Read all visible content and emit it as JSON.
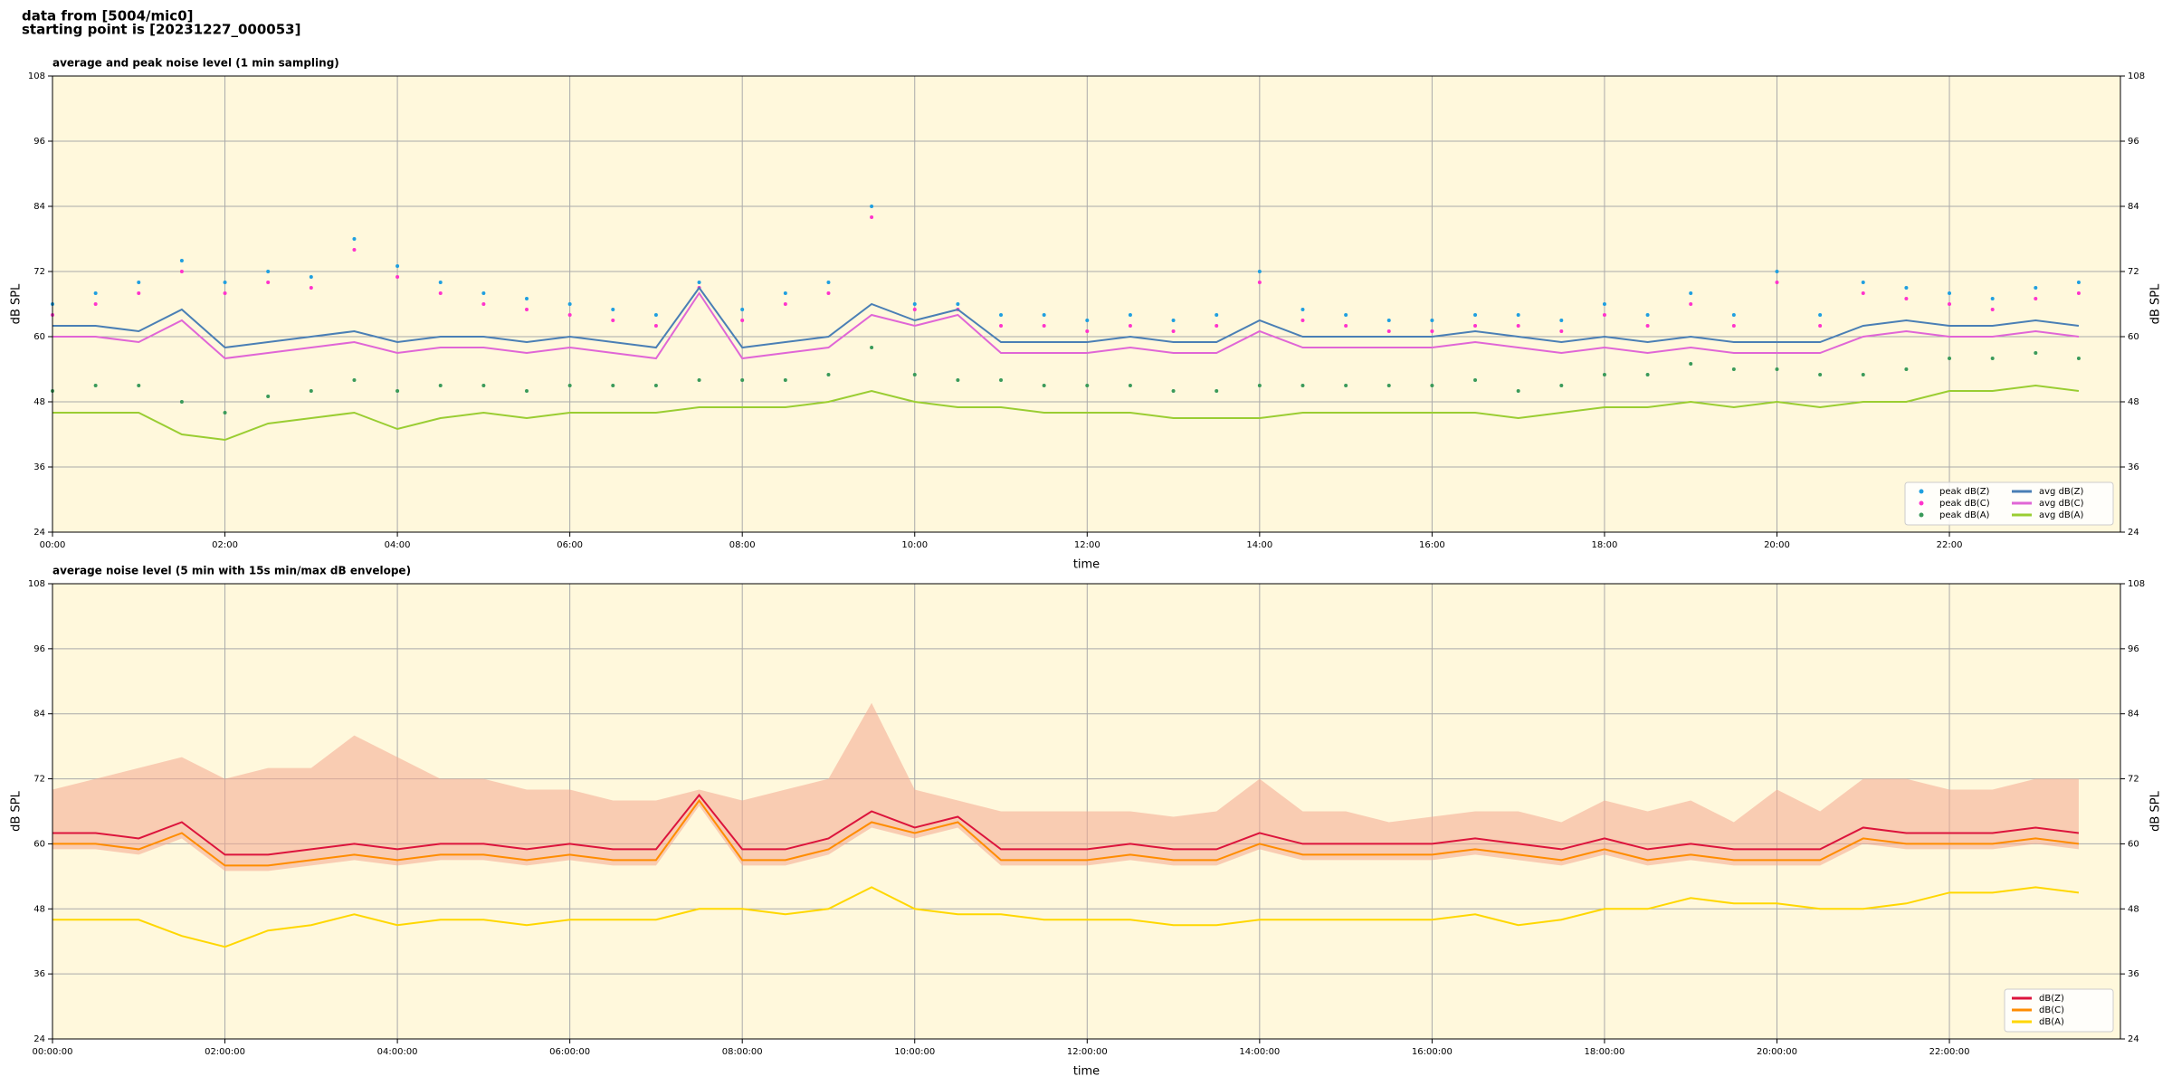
{
  "header": {
    "lines": [
      "data from [5004/mic0]",
      "starting point is [20231227_000053]"
    ]
  },
  "chart_data": [
    {
      "type": "line",
      "title": "average and peak noise level (1 min sampling)",
      "x_label": "time",
      "y_label": "dB SPL",
      "xlim": [
        "00:00",
        "23:59"
      ],
      "xticks": [
        "00:00",
        "02:00",
        "04:00",
        "06:00",
        "08:00",
        "10:00",
        "12:00",
        "14:00",
        "16:00",
        "18:00",
        "20:00",
        "22:00"
      ],
      "ylim": [
        24,
        108
      ],
      "yticks": [
        24,
        36,
        48,
        60,
        72,
        84,
        96,
        108
      ],
      "grid": true,
      "legend": "lower right",
      "legend_columns": 2,
      "background": "#fff8dc",
      "x": [
        "00:00",
        "00:30",
        "01:00",
        "01:30",
        "02:00",
        "02:30",
        "03:00",
        "03:30",
        "04:00",
        "04:30",
        "05:00",
        "05:30",
        "06:00",
        "06:30",
        "07:00",
        "07:30",
        "08:00",
        "08:30",
        "09:00",
        "09:30",
        "10:00",
        "10:30",
        "11:00",
        "11:30",
        "12:00",
        "12:30",
        "13:00",
        "13:30",
        "14:00",
        "14:30",
        "15:00",
        "15:30",
        "16:00",
        "16:30",
        "17:00",
        "17:30",
        "18:00",
        "18:30",
        "19:00",
        "19:30",
        "20:00",
        "20:30",
        "21:00",
        "21:30",
        "22:00",
        "22:30",
        "23:00",
        "23:30"
      ],
      "series": [
        {
          "name": "peak dB(Z)",
          "style": "dots",
          "color": "#1f9fe0",
          "values": [
            66,
            68,
            70,
            74,
            70,
            72,
            71,
            78,
            73,
            70,
            68,
            67,
            66,
            65,
            64,
            70,
            65,
            68,
            70,
            84,
            66,
            66,
            64,
            64,
            63,
            64,
            63,
            64,
            72,
            65,
            64,
            63,
            63,
            64,
            64,
            63,
            66,
            64,
            68,
            64,
            72,
            64,
            70,
            69,
            68,
            67,
            69,
            70
          ]
        },
        {
          "name": "peak dB(C)",
          "style": "dots",
          "color": "#ff33cc",
          "values": [
            64,
            66,
            68,
            72,
            68,
            70,
            69,
            76,
            71,
            68,
            66,
            65,
            64,
            63,
            62,
            69,
            63,
            66,
            68,
            82,
            65,
            65,
            62,
            62,
            61,
            62,
            61,
            62,
            70,
            63,
            62,
            61,
            61,
            62,
            62,
            61,
            64,
            62,
            66,
            62,
            70,
            62,
            68,
            67,
            66,
            65,
            67,
            68
          ]
        },
        {
          "name": "peak dB(A)",
          "style": "dots",
          "color": "#3a9a5a",
          "values": [
            50,
            51,
            51,
            48,
            46,
            49,
            50,
            52,
            50,
            51,
            51,
            50,
            51,
            51,
            51,
            52,
            52,
            52,
            53,
            58,
            53,
            52,
            52,
            51,
            51,
            51,
            50,
            50,
            51,
            51,
            51,
            51,
            51,
            52,
            50,
            51,
            53,
            53,
            55,
            54,
            54,
            53,
            53,
            54,
            56,
            56,
            57,
            56
          ]
        },
        {
          "name": "avg dB(Z)",
          "style": "line",
          "color": "#4a7fb5",
          "values": [
            62,
            62,
            61,
            65,
            58,
            59,
            60,
            61,
            59,
            60,
            60,
            59,
            60,
            59,
            58,
            69,
            58,
            59,
            60,
            66,
            63,
            65,
            59,
            59,
            59,
            60,
            59,
            59,
            63,
            60,
            60,
            60,
            60,
            61,
            60,
            59,
            60,
            59,
            60,
            59,
            59,
            59,
            62,
            63,
            62,
            62,
            63,
            62
          ]
        },
        {
          "name": "avg dB(C)",
          "style": "line",
          "color": "#e066d6",
          "values": [
            60,
            60,
            59,
            63,
            56,
            57,
            58,
            59,
            57,
            58,
            58,
            57,
            58,
            57,
            56,
            68,
            56,
            57,
            58,
            64,
            62,
            64,
            57,
            57,
            57,
            58,
            57,
            57,
            61,
            58,
            58,
            58,
            58,
            59,
            58,
            57,
            58,
            57,
            58,
            57,
            57,
            57,
            60,
            61,
            60,
            60,
            61,
            60
          ]
        },
        {
          "name": "avg dB(A)",
          "style": "line",
          "color": "#9acd32",
          "values": [
            46,
            46,
            46,
            42,
            41,
            44,
            45,
            46,
            43,
            45,
            46,
            45,
            46,
            46,
            46,
            47,
            47,
            47,
            48,
            50,
            48,
            47,
            47,
            46,
            46,
            46,
            45,
            45,
            45,
            46,
            46,
            46,
            46,
            46,
            45,
            46,
            47,
            47,
            48,
            47,
            48,
            47,
            48,
            48,
            50,
            50,
            51,
            50
          ]
        }
      ]
    },
    {
      "type": "line",
      "title": "average noise level (5 min with 15s min/max dB envelope)",
      "x_label": "time",
      "y_label": "dB SPL",
      "xlim": [
        "00:00",
        "23:59"
      ],
      "xticks": [
        "00:00:00",
        "02:00:00",
        "04:00:00",
        "06:00:00",
        "08:00:00",
        "10:00:00",
        "12:00:00",
        "14:00:00",
        "16:00:00",
        "18:00:00",
        "20:00:00",
        "22:00:00"
      ],
      "ylim": [
        24,
        108
      ],
      "yticks": [
        24,
        36,
        48,
        60,
        72,
        84,
        96,
        108
      ],
      "grid": true,
      "legend": "lower right",
      "legend_columns": 1,
      "background": "#fff8dc",
      "x": [
        "00:00",
        "00:30",
        "01:00",
        "01:30",
        "02:00",
        "02:30",
        "03:00",
        "03:30",
        "04:00",
        "04:30",
        "05:00",
        "05:30",
        "06:00",
        "06:30",
        "07:00",
        "07:30",
        "08:00",
        "08:30",
        "09:00",
        "09:30",
        "10:00",
        "10:30",
        "11:00",
        "11:30",
        "12:00",
        "12:30",
        "13:00",
        "13:30",
        "14:00",
        "14:30",
        "15:00",
        "15:30",
        "16:00",
        "16:30",
        "17:00",
        "17:30",
        "18:00",
        "18:30",
        "19:00",
        "19:30",
        "20:00",
        "20:30",
        "21:00",
        "21:30",
        "22:00",
        "22:30",
        "23:00",
        "23:30"
      ],
      "series": [
        {
          "name": "dB(Z)",
          "style": "line",
          "color": "#dc143c",
          "envelope_color": "#f4a890",
          "values": [
            62,
            62,
            61,
            64,
            58,
            58,
            59,
            60,
            59,
            60,
            60,
            59,
            60,
            59,
            59,
            69,
            59,
            59,
            61,
            66,
            63,
            65,
            59,
            59,
            59,
            60,
            59,
            59,
            62,
            60,
            60,
            60,
            60,
            61,
            60,
            59,
            61,
            59,
            60,
            59,
            59,
            59,
            63,
            62,
            62,
            62,
            63,
            62
          ],
          "max": [
            70,
            72,
            74,
            76,
            72,
            74,
            74,
            80,
            76,
            72,
            72,
            70,
            70,
            68,
            68,
            70,
            68,
            70,
            72,
            86,
            70,
            68,
            66,
            66,
            66,
            66,
            65,
            66,
            72,
            66,
            66,
            64,
            65,
            66,
            66,
            64,
            68,
            66,
            68,
            64,
            70,
            66,
            72,
            72,
            70,
            70,
            72,
            72
          ],
          "min": [
            59,
            59,
            58,
            61,
            55,
            55,
            56,
            57,
            56,
            57,
            57,
            56,
            57,
            56,
            56,
            67,
            56,
            56,
            58,
            63,
            61,
            63,
            56,
            56,
            56,
            57,
            56,
            56,
            59,
            57,
            57,
            57,
            57,
            58,
            57,
            56,
            58,
            56,
            57,
            56,
            56,
            56,
            60,
            59,
            59,
            59,
            60,
            59
          ]
        },
        {
          "name": "dB(C)",
          "style": "line",
          "color": "#ff8c00",
          "values": [
            60,
            60,
            59,
            62,
            56,
            56,
            57,
            58,
            57,
            58,
            58,
            57,
            58,
            57,
            57,
            68,
            57,
            57,
            59,
            64,
            62,
            64,
            57,
            57,
            57,
            58,
            57,
            57,
            60,
            58,
            58,
            58,
            58,
            59,
            58,
            57,
            59,
            57,
            58,
            57,
            57,
            57,
            61,
            60,
            60,
            60,
            61,
            60
          ]
        },
        {
          "name": "dB(A)",
          "style": "line",
          "color": "#ffd700",
          "values": [
            46,
            46,
            46,
            43,
            41,
            44,
            45,
            47,
            45,
            46,
            46,
            45,
            46,
            46,
            46,
            48,
            48,
            47,
            48,
            52,
            48,
            47,
            47,
            46,
            46,
            46,
            45,
            45,
            46,
            46,
            46,
            46,
            46,
            47,
            45,
            46,
            48,
            48,
            50,
            49,
            49,
            48,
            48,
            49,
            51,
            51,
            52,
            51
          ]
        }
      ]
    }
  ]
}
